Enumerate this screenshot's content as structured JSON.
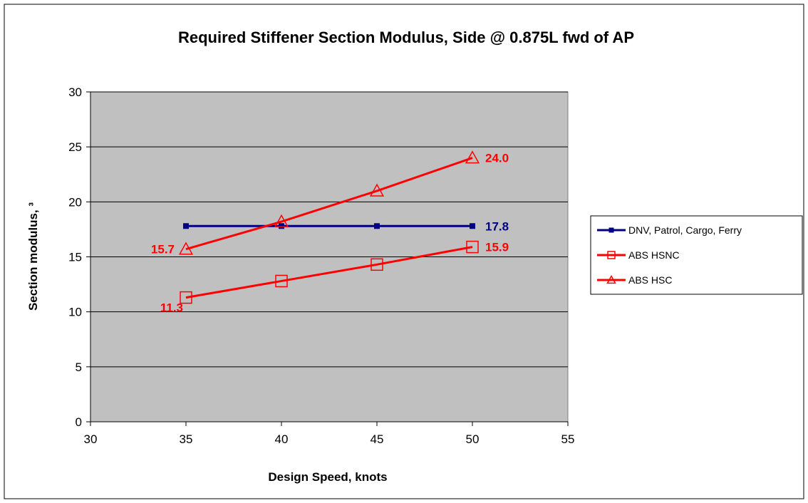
{
  "chart_data": {
    "type": "line",
    "title": "Required Stiffener Section Modulus, Side @ 0.875L fwd of AP",
    "xlabel": "Design Speed, knots",
    "ylabel": "Section modulus, ³",
    "xlim": [
      30,
      55
    ],
    "ylim": [
      0,
      30
    ],
    "x_ticks": [
      "30",
      "35",
      "40",
      "45",
      "50",
      "55"
    ],
    "y_ticks": [
      "0",
      "5",
      "10",
      "15",
      "20",
      "25",
      "30"
    ],
    "grid": "horizontal",
    "plot_background": "#c0c0c0",
    "legend_position": "right",
    "series": [
      {
        "name": "DNV, Patrol, Cargo, Ferry",
        "color": "#000080",
        "marker": "filled-square",
        "x": [
          35,
          40,
          45,
          50
        ],
        "y": [
          17.8,
          17.8,
          17.8,
          17.8
        ],
        "labels": [
          {
            "x": 50,
            "y": 17.8,
            "text": "17.8",
            "pos": "right"
          }
        ]
      },
      {
        "name": "ABS HSNC",
        "color": "#ff0000",
        "marker": "open-square",
        "x": [
          35,
          40,
          45,
          50
        ],
        "y": [
          11.3,
          12.8,
          14.3,
          15.9
        ],
        "labels": [
          {
            "x": 35,
            "y": 11.3,
            "text": "11.3",
            "pos": "below-left"
          },
          {
            "x": 50,
            "y": 15.9,
            "text": "15.9",
            "pos": "right"
          }
        ]
      },
      {
        "name": "ABS HSC",
        "color": "#ff0000",
        "marker": "open-triangle",
        "x": [
          35,
          40,
          45,
          50
        ],
        "y": [
          15.7,
          18.2,
          21.0,
          24.0
        ],
        "labels": [
          {
            "x": 35,
            "y": 15.7,
            "text": "15.7",
            "pos": "left"
          },
          {
            "x": 50,
            "y": 24.0,
            "text": "24.0",
            "pos": "right"
          }
        ]
      }
    ]
  }
}
